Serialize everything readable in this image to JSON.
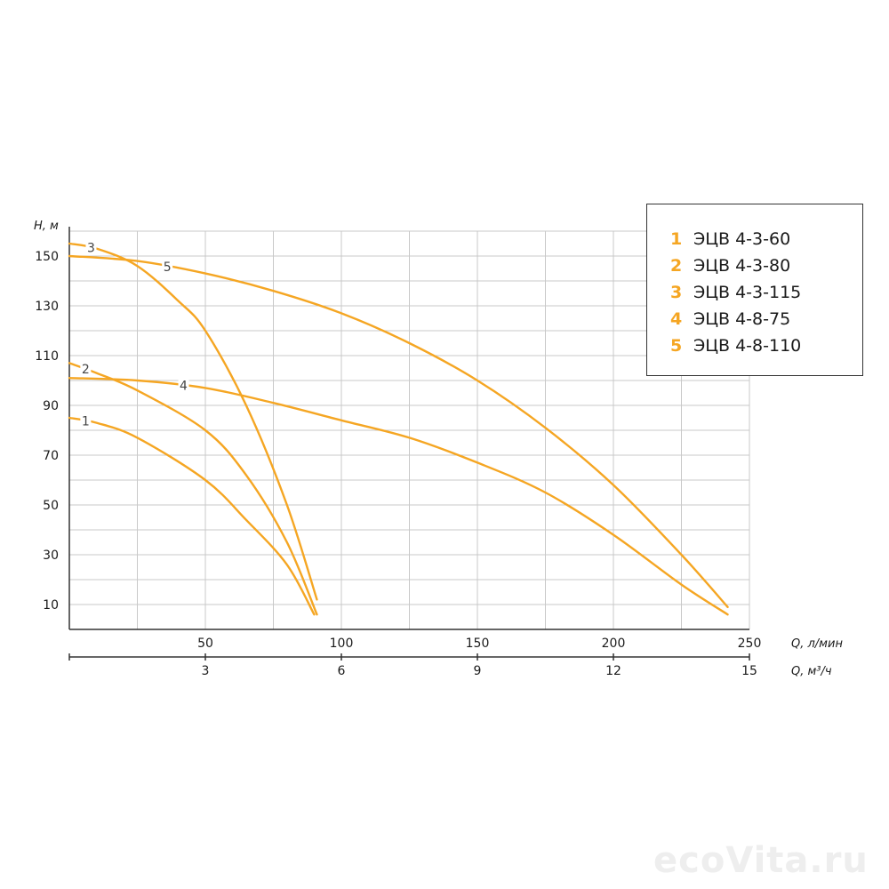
{
  "chart_data": {
    "type": "line",
    "ylabel": "H, м",
    "xlabel_primary": "Q, л/мин",
    "xlabel_secondary": "Q, м³/ч",
    "xlim": [
      0,
      250
    ],
    "ylim": [
      0,
      160
    ],
    "x_ticks": [
      50,
      100,
      150,
      200,
      250
    ],
    "x_ticks_secondary": [
      3,
      6,
      9,
      12,
      15
    ],
    "y_ticks": [
      10,
      30,
      50,
      70,
      90,
      110,
      130,
      150
    ],
    "grid": true,
    "legend_position": "top-right",
    "line_color": "#f5a623",
    "series": [
      {
        "name": "ЭЦВ 4-3-60",
        "label": "1",
        "x": [
          0,
          10,
          25,
          50,
          65,
          80,
          90
        ],
        "y": [
          85,
          83,
          77,
          60,
          44,
          26,
          6
        ]
      },
      {
        "name": "ЭЦВ 4-3-80",
        "label": "2",
        "x": [
          0,
          10,
          25,
          50,
          65,
          80,
          91
        ],
        "y": [
          107,
          103,
          96,
          80,
          62,
          35,
          6
        ]
      },
      {
        "name": "ЭЦВ 4-3-115",
        "label": "3",
        "x": [
          0,
          10,
          25,
          40,
          50,
          65,
          80,
          91
        ],
        "y": [
          155,
          153,
          146,
          132,
          120,
          90,
          50,
          12
        ]
      },
      {
        "name": "ЭЦВ 4-8-75",
        "label": "4",
        "x": [
          0,
          25,
          50,
          75,
          100,
          125,
          150,
          175,
          200,
          225,
          242
        ],
        "y": [
          101,
          100,
          97,
          91,
          84,
          77,
          67,
          55,
          38,
          18,
          6
        ]
      },
      {
        "name": "ЭЦВ 4-8-110",
        "label": "5",
        "x": [
          0,
          25,
          50,
          75,
          100,
          125,
          150,
          175,
          200,
          225,
          242
        ],
        "y": [
          150,
          148,
          143,
          136,
          127,
          115,
          100,
          81,
          58,
          30,
          9
        ]
      }
    ]
  },
  "watermark": "ecoVita.ru"
}
